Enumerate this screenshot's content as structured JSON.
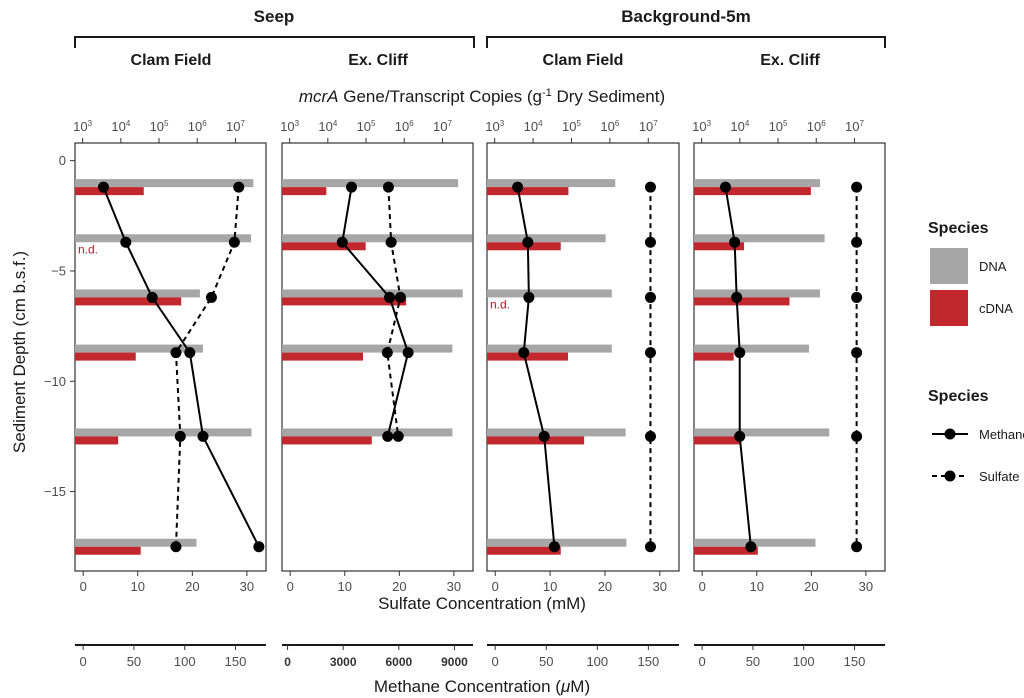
{
  "groups": [
    {
      "label": "Seep",
      "panels": [
        0,
        1
      ]
    },
    {
      "label": "Background-5m",
      "panels": [
        2,
        3
      ]
    }
  ],
  "facets": [
    "Clam Field",
    "Ex. Cliff",
    "Clam Field",
    "Ex. Cliff"
  ],
  "top_axis_title_italic": "mcrA",
  "top_axis_title_rest": " Gene/Transcript Copies (g",
  "top_axis_title_sup": "-1",
  "top_axis_title_end": " Dry Sediment)",
  "top_ticks": [
    {
      "base": "10",
      "exp": "3"
    },
    {
      "base": "10",
      "exp": "4"
    },
    {
      "base": "10",
      "exp": "5"
    },
    {
      "base": "10",
      "exp": "6"
    },
    {
      "base": "10",
      "exp": "7"
    }
  ],
  "y_axis_title": "Sediment Depth (cm b.s.f.)",
  "y_ticks": [
    "0",
    "−5",
    "−10",
    "−15"
  ],
  "sulfate_axis_title": "Sulfate Concentration (mM)",
  "sulfate_ticks": [
    "0",
    "10",
    "20",
    "30"
  ],
  "methane_axis_title_main": "Methane Concentration (",
  "methane_axis_title_mu": "μ",
  "methane_axis_title_end": "M)",
  "methane_ticks": [
    [
      "0",
      "50",
      "100",
      "150"
    ],
    [
      "0",
      "3000",
      "6000",
      "9000"
    ],
    [
      "0",
      "50",
      "100",
      "150"
    ],
    [
      "0",
      "50",
      "100",
      "150"
    ]
  ],
  "nd_label": "n.d.",
  "legend": {
    "fill_title": "Species",
    "fill_items": [
      {
        "label": "DNA",
        "color": "#a6a6a6"
      },
      {
        "label": "cDNA",
        "color": "#c1272d"
      }
    ],
    "line_title": "Species",
    "line_items": [
      {
        "label": "Methane",
        "style": "solid"
      },
      {
        "label": "Sulfate",
        "style": "dashed"
      }
    ]
  },
  "colors": {
    "dna": "#a6a6a6",
    "cdna": "#c1272d",
    "line": "#000000"
  },
  "chart_data": [
    {
      "type": "bar+line",
      "group": "Seep",
      "facet": "Clam Field",
      "ylim": [
        -18.6,
        0.8
      ],
      "depths": [
        -1.2,
        -3.7,
        -6.2,
        -8.7,
        -12.5,
        -17.5
      ],
      "log_xlim": [
        2.8,
        7.8
      ],
      "dna_log10": [
        7.47,
        7.41,
        6.07,
        6.15,
        7.42,
        5.98
      ],
      "cdna_log10": [
        4.6,
        null,
        5.58,
        4.39,
        3.93,
        4.52
      ],
      "sulfate_mM": [
        28.5,
        27.7,
        23.5,
        17.0,
        17.8,
        17.0
      ],
      "sulfate_xlim": [
        -1.5,
        33.5
      ],
      "methane_uM": [
        20,
        42,
        68,
        105,
        118,
        173
      ],
      "methane_xlim": [
        -8,
        180
      ]
    },
    {
      "type": "bar+line",
      "group": "Seep",
      "facet": "Ex. Cliff",
      "ylim": [
        -18.6,
        0.8
      ],
      "depths": [
        -1.2,
        -3.7,
        -6.2,
        -8.7,
        -12.5
      ],
      "log_xlim": [
        2.8,
        7.8
      ],
      "dna_log10": [
        7.41,
        7.79,
        7.53,
        7.26,
        7.26
      ],
      "cdna_log10": [
        3.96,
        4.99,
        6.05,
        4.92,
        5.15
      ],
      "sulfate_mM": [
        18.0,
        18.5,
        20.2,
        17.8,
        19.8
      ],
      "sulfate_xlim": [
        -1.5,
        33.5
      ],
      "methane_uM": [
        3450,
        2950,
        5500,
        6500,
        5400
      ],
      "methane_xlim": [
        -300,
        10000
      ]
    },
    {
      "type": "bar+line",
      "group": "Background-5m",
      "facet": "Clam Field",
      "ylim": [
        -18.6,
        0.8
      ],
      "depths": [
        -1.2,
        -3.7,
        -6.2,
        -8.7,
        -12.5,
        -17.5
      ],
      "log_xlim": [
        2.8,
        7.8
      ],
      "dna_log10": [
        6.14,
        5.89,
        6.05,
        6.05,
        6.41,
        6.43
      ],
      "cdna_log10": [
        4.92,
        4.72,
        null,
        4.91,
        5.33,
        4.72
      ],
      "sulfate_mM": [
        28.3,
        28.3,
        28.3,
        28.3,
        28.3,
        28.3
      ],
      "sulfate_xlim": [
        -1.5,
        33.5
      ],
      "methane_uM": [
        22,
        32,
        33,
        28,
        48,
        58
      ],
      "methane_xlim": [
        -8,
        180
      ]
    },
    {
      "type": "bar+line",
      "group": "Background-5m",
      "facet": "Ex. Cliff",
      "ylim": [
        -18.6,
        0.8
      ],
      "depths": [
        -1.2,
        -3.7,
        -6.2,
        -8.7,
        -12.5,
        -17.5
      ],
      "log_xlim": [
        2.8,
        7.8
      ],
      "dna_log10": [
        6.1,
        6.22,
        6.1,
        5.81,
        6.34,
        5.98
      ],
      "cdna_log10": [
        5.86,
        4.11,
        5.3,
        3.84,
        3.99,
        4.47
      ],
      "sulfate_mM": [
        28.3,
        28.3,
        28.3,
        28.3,
        28.3,
        28.3
      ],
      "sulfate_xlim": [
        -1.5,
        33.5
      ],
      "methane_uM": [
        23,
        32,
        34,
        37,
        37,
        48
      ],
      "methane_xlim": [
        -8,
        180
      ]
    }
  ]
}
